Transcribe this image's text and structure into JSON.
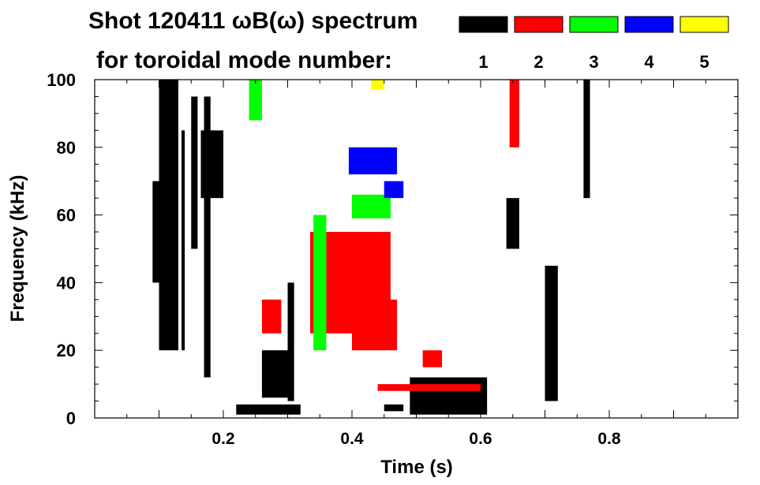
{
  "title_line1": "Shot 120411 ωB(ω) spectrum",
  "title_line2": "for toroidal mode number:",
  "colors": {
    "n1": "#000000",
    "n2": "#ff0000",
    "n3": "#00ff00",
    "n4": "#0000ff",
    "n5": "#ffff00"
  },
  "chart_data": {
    "type": "heatmap",
    "xlabel": "Time (s)",
    "ylabel": "Frequency (kHz)",
    "xlim": [
      0.0,
      1.0
    ],
    "ylim": [
      0,
      100
    ],
    "x_ticks": [
      0.2,
      0.4,
      0.6,
      0.8
    ],
    "x_tick_labels": [
      "0.2",
      "0.4",
      "0.6",
      "0.8"
    ],
    "y_ticks": [
      0,
      20,
      40,
      60,
      80,
      100
    ],
    "y_tick_labels": [
      "0",
      "20",
      "40",
      "60",
      "80",
      "100"
    ],
    "grid": false,
    "legend": [
      {
        "label": "1",
        "color": "#000000"
      },
      {
        "label": "2",
        "color": "#ff0000"
      },
      {
        "label": "3",
        "color": "#00ff00"
      },
      {
        "label": "4",
        "color": "#0000ff"
      },
      {
        "label": "5",
        "color": "#ffff00"
      }
    ],
    "legend_position": "top-right",
    "regions": [
      {
        "mode": 1,
        "t": [
          0.09,
          0.1
        ],
        "f": [
          40,
          70
        ]
      },
      {
        "mode": 1,
        "t": [
          0.1,
          0.13
        ],
        "f": [
          20,
          100
        ]
      },
      {
        "mode": 1,
        "t": [
          0.135,
          0.14
        ],
        "f": [
          20,
          85
        ]
      },
      {
        "mode": 1,
        "t": [
          0.15,
          0.16
        ],
        "f": [
          50,
          95
        ]
      },
      {
        "mode": 1,
        "t": [
          0.165,
          0.2
        ],
        "f": [
          65,
          85
        ]
      },
      {
        "mode": 1,
        "t": [
          0.17,
          0.18
        ],
        "f": [
          12,
          95
        ]
      },
      {
        "mode": 1,
        "t": [
          0.22,
          0.32
        ],
        "f": [
          1,
          4
        ]
      },
      {
        "mode": 1,
        "t": [
          0.26,
          0.3
        ],
        "f": [
          6,
          20
        ]
      },
      {
        "mode": 1,
        "t": [
          0.3,
          0.31
        ],
        "f": [
          5,
          40
        ]
      },
      {
        "mode": 1,
        "t": [
          0.45,
          0.48
        ],
        "f": [
          2,
          4
        ]
      },
      {
        "mode": 1,
        "t": [
          0.49,
          0.61
        ],
        "f": [
          1,
          12
        ]
      },
      {
        "mode": 1,
        "t": [
          0.64,
          0.66
        ],
        "f": [
          50,
          65
        ]
      },
      {
        "mode": 1,
        "t": [
          0.7,
          0.72
        ],
        "f": [
          5,
          45
        ]
      },
      {
        "mode": 1,
        "t": [
          0.76,
          0.77
        ],
        "f": [
          65,
          100
        ]
      },
      {
        "mode": 2,
        "t": [
          0.26,
          0.29
        ],
        "f": [
          25,
          35
        ]
      },
      {
        "mode": 2,
        "t": [
          0.335,
          0.46
        ],
        "f": [
          25,
          55
        ]
      },
      {
        "mode": 2,
        "t": [
          0.4,
          0.47
        ],
        "f": [
          20,
          35
        ]
      },
      {
        "mode": 2,
        "t": [
          0.44,
          0.6
        ],
        "f": [
          8,
          10
        ]
      },
      {
        "mode": 2,
        "t": [
          0.51,
          0.54
        ],
        "f": [
          15,
          20
        ]
      },
      {
        "mode": 2,
        "t": [
          0.645,
          0.66
        ],
        "f": [
          80,
          100
        ]
      },
      {
        "mode": 3,
        "t": [
          0.24,
          0.26
        ],
        "f": [
          88,
          100
        ]
      },
      {
        "mode": 3,
        "t": [
          0.34,
          0.36
        ],
        "f": [
          20,
          60
        ]
      },
      {
        "mode": 3,
        "t": [
          0.4,
          0.46
        ],
        "f": [
          59,
          66
        ]
      },
      {
        "mode": 4,
        "t": [
          0.395,
          0.47
        ],
        "f": [
          72,
          80
        ]
      },
      {
        "mode": 4,
        "t": [
          0.45,
          0.48
        ],
        "f": [
          65,
          70
        ]
      },
      {
        "mode": 5,
        "t": [
          0.43,
          0.45
        ],
        "f": [
          97,
          100
        ]
      }
    ]
  }
}
